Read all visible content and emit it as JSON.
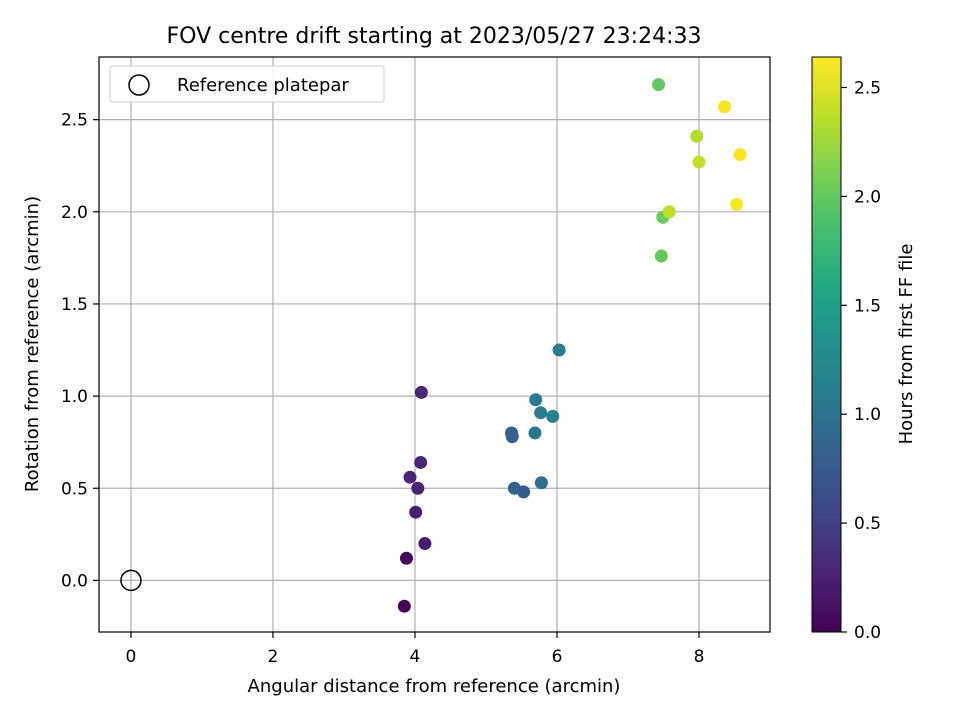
{
  "chart_data": {
    "type": "scatter",
    "title": "FOV centre drift starting at 2023/05/27 23:24:33",
    "xlabel": "Angular distance from reference (arcmin)",
    "ylabel": "Rotation from reference (arcmin)",
    "xlim": [
      -0.45,
      9.0
    ],
    "ylim": [
      -0.28,
      2.84
    ],
    "xticks": [
      0,
      2,
      4,
      6,
      8
    ],
    "xtick_labels": [
      "0",
      "2",
      "4",
      "6",
      "8"
    ],
    "yticks": [
      0.0,
      0.5,
      1.0,
      1.5,
      2.0,
      2.5
    ],
    "ytick_labels": [
      "0.0",
      "0.5",
      "1.0",
      "1.5",
      "2.0",
      "2.5"
    ],
    "grid": true,
    "legend": {
      "placement": "top-left",
      "entries": [
        "Reference platepar"
      ]
    },
    "reference_point": {
      "x": 0.0,
      "y": 0.0,
      "label": "Reference platepar"
    },
    "colorbar": {
      "label": "Hours from first FF file",
      "colormap": "viridis",
      "range": [
        0.0,
        2.64
      ],
      "ticks": [
        0.0,
        0.5,
        1.0,
        1.5,
        2.0,
        2.5
      ],
      "tick_labels": [
        "0.0",
        "0.5",
        "1.0",
        "1.5",
        "2.0",
        "2.5"
      ]
    },
    "points": [
      {
        "x": 3.85,
        "y": -0.14,
        "hours": 0.02
      },
      {
        "x": 3.88,
        "y": 0.12,
        "hours": 0.05
      },
      {
        "x": 4.14,
        "y": 0.2,
        "hours": 0.2
      },
      {
        "x": 4.01,
        "y": 0.37,
        "hours": 0.22
      },
      {
        "x": 4.04,
        "y": 0.5,
        "hours": 0.25
      },
      {
        "x": 3.93,
        "y": 0.56,
        "hours": 0.27
      },
      {
        "x": 4.08,
        "y": 0.64,
        "hours": 0.28
      },
      {
        "x": 4.09,
        "y": 1.02,
        "hours": 0.3
      },
      {
        "x": 5.53,
        "y": 0.48,
        "hours": 0.78
      },
      {
        "x": 5.4,
        "y": 0.5,
        "hours": 0.85
      },
      {
        "x": 5.78,
        "y": 0.53,
        "hours": 0.95
      },
      {
        "x": 5.37,
        "y": 0.78,
        "hours": 0.8
      },
      {
        "x": 5.36,
        "y": 0.8,
        "hours": 0.82
      },
      {
        "x": 5.69,
        "y": 0.8,
        "hours": 1.02
      },
      {
        "x": 5.7,
        "y": 0.98,
        "hours": 1.07
      },
      {
        "x": 5.77,
        "y": 0.91,
        "hours": 1.1
      },
      {
        "x": 5.94,
        "y": 0.89,
        "hours": 1.15
      },
      {
        "x": 6.03,
        "y": 1.25,
        "hours": 1.12
      },
      {
        "x": 7.47,
        "y": 1.76,
        "hours": 2.0
      },
      {
        "x": 7.49,
        "y": 1.97,
        "hours": 2.03
      },
      {
        "x": 7.43,
        "y": 2.69,
        "hours": 2.0
      },
      {
        "x": 7.58,
        "y": 2.0,
        "hours": 2.38
      },
      {
        "x": 7.97,
        "y": 2.41,
        "hours": 2.33
      },
      {
        "x": 8.0,
        "y": 2.27,
        "hours": 2.4
      },
      {
        "x": 8.36,
        "y": 2.57,
        "hours": 2.62
      },
      {
        "x": 8.58,
        "y": 2.31,
        "hours": 2.62
      },
      {
        "x": 8.53,
        "y": 2.04,
        "hours": 2.62
      }
    ]
  }
}
